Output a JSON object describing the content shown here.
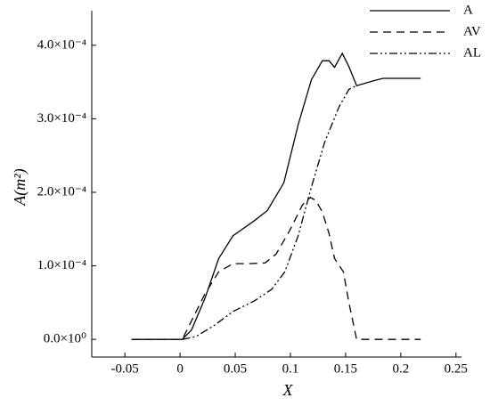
{
  "chart_data": {
    "type": "line",
    "x_label": "X",
    "y_label": "A(m²)",
    "xlim": [
      -0.08,
      0.255
    ],
    "xticks": [
      -0.05,
      0,
      0.05,
      0.1,
      0.15,
      0.2,
      0.25
    ],
    "ylim": [
      -2.4e-05,
      0.000447
    ],
    "yticks": [
      {
        "value": 0,
        "label": "0.0×10⁰"
      },
      {
        "value": 0.0001,
        "label": "1.0×10⁻⁴"
      },
      {
        "value": 0.0002,
        "label": "2.0×10⁻⁴"
      },
      {
        "value": 0.0003,
        "label": "3.0×10⁻⁴"
      },
      {
        "value": 0.0004,
        "label": "4.0×10⁻⁴"
      }
    ],
    "legend": "upper right",
    "series": [
      {
        "name": "A",
        "color": "#000000",
        "dash": "solid",
        "x": [
          -0.044,
          0.002,
          0.0105,
          0.0226,
          0.035,
          0.048,
          0.067,
          0.079,
          0.094,
          0.107,
          0.119,
          0.129,
          0.135,
          0.14,
          0.147,
          0.153,
          0.16,
          0.176,
          0.184,
          0.218
        ],
        "values": [
          0,
          0,
          1.3e-05,
          5.6e-05,
          0.00011,
          0.000141,
          0.000161,
          0.000175,
          0.000213,
          0.000292,
          0.000353,
          0.000379,
          0.000379,
          0.00037,
          0.000389,
          0.000371,
          0.000345,
          0.000352,
          0.000355,
          0.000355
        ]
      },
      {
        "name": "AV",
        "color": "#000000",
        "dash": "dashed",
        "x": [
          -0.044,
          0.002,
          0.0226,
          0.035,
          0.048,
          0.063,
          0.077,
          0.087,
          0.099,
          0.111,
          0.118,
          0.123,
          0.129,
          0.135,
          0.14,
          0.148,
          0.153,
          0.16,
          0.218
        ],
        "values": [
          0,
          0,
          6.2e-05,
          9.2e-05,
          0.000103,
          0.000103,
          0.000104,
          0.000116,
          0.000147,
          0.000183,
          0.000193,
          0.000189,
          0.000173,
          0.000144,
          0.00011,
          9.2e-05,
          5e-05,
          0,
          0
        ]
      },
      {
        "name": "AL",
        "color": "#000000",
        "dash": "dashdotdot",
        "x": [
          0.002,
          0.0145,
          0.031,
          0.048,
          0.067,
          0.083,
          0.095,
          0.107,
          0.119,
          0.131,
          0.144,
          0.153,
          0.16
        ],
        "values": [
          0,
          4e-06,
          1.9e-05,
          3.8e-05,
          5.2e-05,
          6.8e-05,
          9.2e-05,
          0.000141,
          0.000207,
          0.000268,
          0.000316,
          0.00034,
          0.000345
        ]
      }
    ]
  }
}
